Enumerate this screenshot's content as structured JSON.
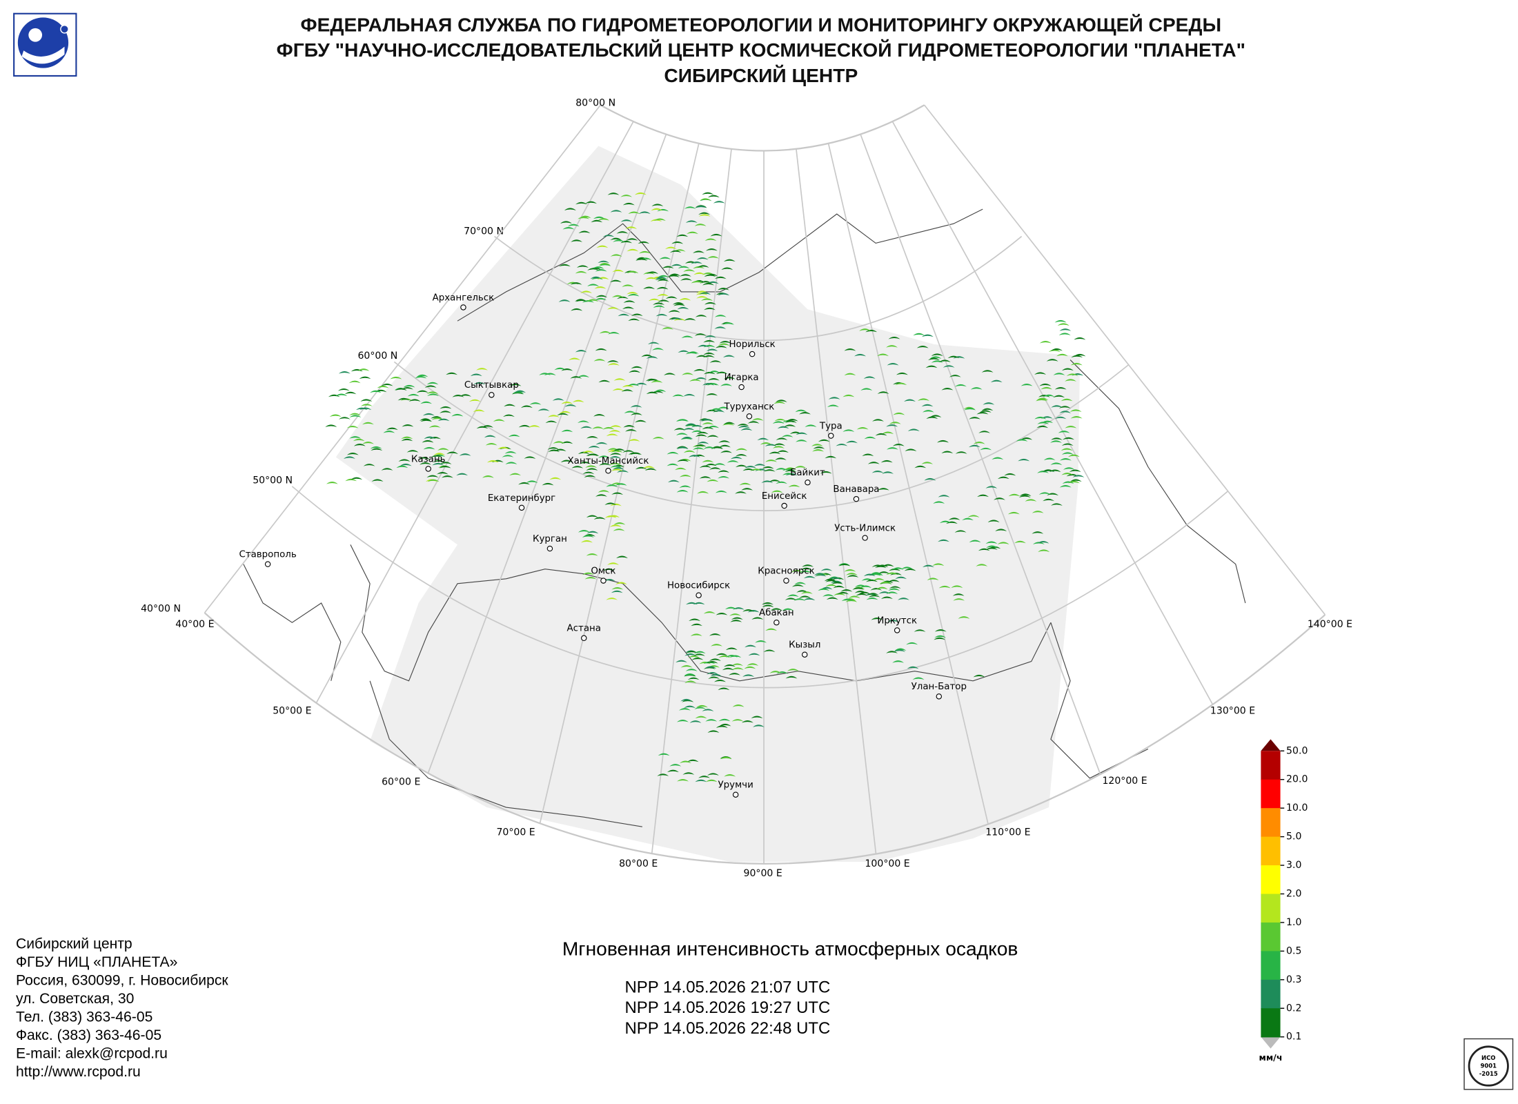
{
  "header": {
    "lines": [
      "ФЕДЕРАЛЬНАЯ СЛУЖБА ПО ГИДРОМЕТЕОРОЛОГИИ И МОНИТОРИНГУ ОКРУЖАЮЩЕЙ СРЕДЫ",
      "ФГБУ \"НАУЧНО-ИССЛЕДОВАТЕЛЬСКИЙ ЦЕНТР КОСМИЧЕСКОЙ ГИДРОМЕТЕОРОЛОГИИ \"ПЛАНЕТА\"",
      "СИБИРСКИЙ ЦЕНТР"
    ]
  },
  "map": {
    "parallels": [
      "80°00 N",
      "70°00 N",
      "60°00 N",
      "50°00 N",
      "40°00 N"
    ],
    "meridians": [
      "40°00 E",
      "50°00 E",
      "60°00 E",
      "70°00 E",
      "80°00 E",
      "90°00 E",
      "100°00 E",
      "110°00 E",
      "120°00 E",
      "130°00 E",
      "140°00 E"
    ],
    "cities": [
      "Архангельск",
      "Норильск",
      "Игарка",
      "Туруханск",
      "Тура",
      "Сыктывкар",
      "Казань",
      "Ханты-Мансийск",
      "Байкит",
      "Енисейск",
      "Ванавара",
      "Екатеринбург",
      "Усть-Илимск",
      "Курган",
      "Ставрополь",
      "Омск",
      "Новосибирск",
      "Красноярск",
      "Абакан",
      "Иркутск",
      "Астана",
      "Кызыл",
      "Улан-Батор",
      "Урумчи"
    ]
  },
  "legend": {
    "levels": [
      "50.0",
      "20.0",
      "10.0",
      "5.0",
      "3.0",
      "2.0",
      "1.0",
      "0.5",
      "0.3",
      "0.2",
      "0.1"
    ],
    "unit": "мм/ч"
  },
  "product": {
    "title": "Мгновенная интенсивность атмосферных осадков",
    "passes": [
      "NPP 14.05.2026  21:07 UTC",
      "NPP 14.05.2026  19:27 UTC",
      "NPP 14.05.2026  22:48 UTC"
    ]
  },
  "footer": {
    "lines": [
      "Сибирский центр",
      "ФГБУ НИЦ «ПЛАНЕТА»",
      "Россия, 630099, г. Новосибирск",
      "ул. Советская, 30",
      "Тел. (383) 363-46-05",
      "Факс. (383) 363-46-05",
      "E-mail: alexk@rcpod.ru",
      "http://www.rcpod.ru"
    ]
  },
  "iso": {
    "lines": [
      "ИСО",
      "9001",
      "-2015"
    ]
  }
}
